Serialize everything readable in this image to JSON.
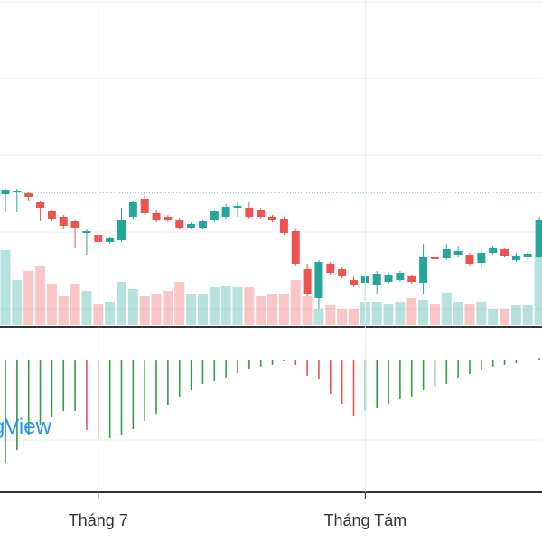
{
  "chart_data": {
    "type": "candlestick",
    "watermark": "gView",
    "categories": [
      null,
      null,
      null,
      null,
      null,
      null,
      null,
      null,
      "Tháng 7",
      null,
      null,
      null,
      null,
      null,
      null,
      null,
      null,
      null,
      null,
      null,
      null,
      null,
      null,
      null,
      null,
      null,
      null,
      null,
      null,
      null,
      null,
      "Tháng Tám",
      null,
      null,
      null,
      null,
      null,
      null,
      null,
      null,
      null,
      null,
      null,
      null,
      null,
      null,
      null
    ],
    "open": [
      145,
      147,
      146,
      136,
      126,
      120,
      115,
      102,
      100,
      92,
      94,
      120,
      140,
      124,
      120,
      117,
      108,
      108,
      116,
      120,
      130,
      130,
      128,
      120,
      118,
      104,
      62,
      30,
      68,
      62,
      50,
      47,
      44,
      48,
      50,
      54,
      47,
      76,
      74,
      78,
      78,
      69,
      80,
      84,
      72,
      75,
      76
    ],
    "high": [
      152,
      151,
      148,
      138,
      128,
      122,
      117,
      106,
      102,
      98,
      130,
      138,
      146,
      127,
      122,
      119,
      114,
      117,
      128,
      134,
      138,
      136,
      130,
      122,
      120,
      106,
      68,
      72,
      70,
      64,
      54,
      56,
      60,
      58,
      60,
      56,
      90,
      80,
      90,
      88,
      80,
      84,
      88,
      86,
      80,
      81,
      120
    ],
    "low": [
      125,
      125,
      138,
      115,
      115,
      107,
      85,
      78,
      88,
      90,
      92,
      118,
      122,
      114,
      114,
      106,
      106,
      106,
      114,
      118,
      120,
      118,
      118,
      114,
      100,
      66,
      32,
      18,
      56,
      52,
      42,
      27,
      35,
      46,
      48,
      46,
      35,
      70,
      72,
      76,
      66,
      62,
      78,
      75,
      70,
      73,
      74
    ],
    "close": [
      150,
      149,
      142,
      130,
      118,
      110,
      108,
      104,
      92,
      96,
      116,
      136,
      124,
      117,
      116,
      108,
      112,
      115,
      126,
      131,
      132,
      120,
      120,
      116,
      102,
      68,
      34,
      70,
      58,
      54,
      44,
      54,
      57,
      56,
      58,
      48,
      75,
      73,
      84,
      82,
      68,
      80,
      85,
      77,
      77,
      79,
      117
    ],
    "volume": [
      83,
      50,
      60,
      66,
      46,
      32,
      46,
      38,
      24,
      26,
      48,
      40,
      32,
      35,
      38,
      48,
      35,
      35,
      42,
      43,
      42,
      42,
      32,
      34,
      34,
      50,
      32,
      18,
      22,
      18,
      18,
      26,
      26,
      24,
      26,
      30,
      28,
      24,
      36,
      26,
      24,
      26,
      18,
      18,
      22,
      22,
      76
    ],
    "macd_histogram": [
      -114,
      -100,
      -84,
      -72,
      -64,
      -57,
      -57,
      -78,
      -88,
      -87,
      -84,
      -77,
      -68,
      -60,
      -50,
      -42,
      -34,
      -27,
      -24,
      -20,
      -15,
      -10,
      -8,
      -6,
      -2,
      -6,
      -18,
      -22,
      -38,
      -49,
      -62,
      -57,
      -54,
      -49,
      -44,
      -42,
      -34,
      -30,
      -27,
      -20,
      -16,
      -12,
      -8,
      -6,
      -4,
      0,
      2
    ],
    "up_color": "#26a69a",
    "down_color": "#ef5350",
    "ylim": [
      0,
      360
    ]
  }
}
